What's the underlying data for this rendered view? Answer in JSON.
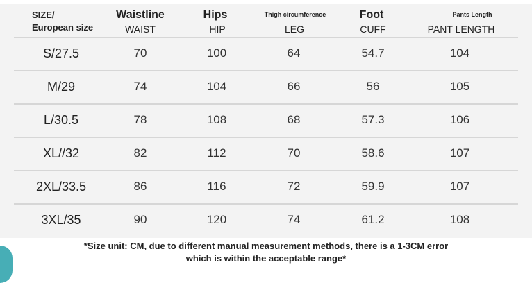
{
  "headers": [
    {
      "top": "SIZE/",
      "bottom": "European size"
    },
    {
      "top": "Waistline",
      "bottom": "WAIST"
    },
    {
      "top": "Hips",
      "bottom": "HIP"
    },
    {
      "top": "Thigh circumference",
      "bottom": "LEG"
    },
    {
      "top": "Foot",
      "bottom": "CUFF"
    },
    {
      "top": "Pants Length",
      "bottom": "PANT LENGTH"
    }
  ],
  "rows": [
    [
      "S/27.5",
      "70",
      "100",
      "64",
      "54.7",
      "104"
    ],
    [
      "M/29",
      "74",
      "104",
      "66",
      "56",
      "105"
    ],
    [
      "L/30.5",
      "78",
      "108",
      "68",
      "57.3",
      "106"
    ],
    [
      "XL//32",
      "82",
      "112",
      "70",
      "58.6",
      "107"
    ],
    [
      "2XL/33.5",
      "86",
      "116",
      "72",
      "59.9",
      "107"
    ],
    [
      "3XL/35",
      "90",
      "120",
      "74",
      "61.2",
      "108"
    ]
  ],
  "note": {
    "line1": "*Size unit: CM, due to different manual measurement methods, there is a 1-3CM error",
    "line2": "which is within the acceptable range*"
  },
  "colors": {
    "panel": "#f3f3f3",
    "divider": "#d6d6d6",
    "circle": "#47aeb6"
  }
}
